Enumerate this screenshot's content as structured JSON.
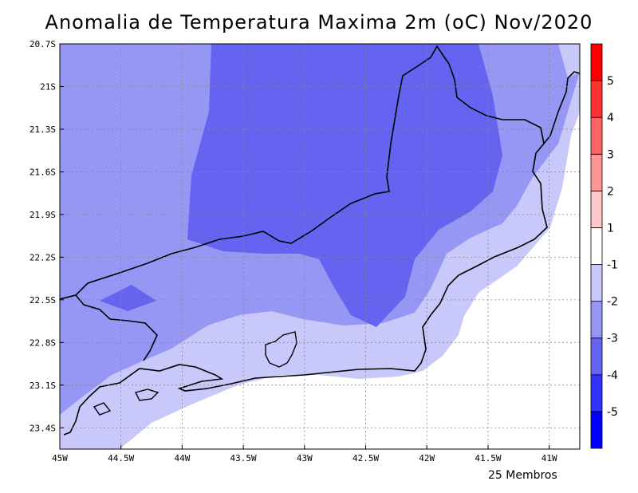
{
  "title": "Anomalia de Temperatura Maxima 2m (oC) Nov/2020",
  "footer": "25 Membros",
  "map": {
    "lon_range": [
      -45,
      -40.75
    ],
    "lat_range": [
      -23.55,
      -20.7
    ],
    "lon_ticks": [
      {
        "value": -45,
        "label": "45W"
      },
      {
        "value": -44.5,
        "label": "44.5W"
      },
      {
        "value": -44,
        "label": "44W"
      },
      {
        "value": -43.5,
        "label": "43.5W"
      },
      {
        "value": -43,
        "label": "43W"
      },
      {
        "value": -42.5,
        "label": "42.5W"
      },
      {
        "value": -42,
        "label": "42W"
      },
      {
        "value": -41.5,
        "label": "41.5W"
      },
      {
        "value": -41,
        "label": "41W"
      }
    ],
    "lat_ticks": [
      {
        "value": -20.7,
        "label": "20.7S"
      },
      {
        "value": -21,
        "label": "21S"
      },
      {
        "value": -21.3,
        "label": "21.3S"
      },
      {
        "value": -21.6,
        "label": "21.6S"
      },
      {
        "value": -21.9,
        "label": "21.9S"
      },
      {
        "value": -22.2,
        "label": "22.2S"
      },
      {
        "value": -22.5,
        "label": "22.5S"
      },
      {
        "value": -22.8,
        "label": "22.8S"
      },
      {
        "value": -23.1,
        "label": "23.1S"
      },
      {
        "value": -23.4,
        "label": "23.4S"
      }
    ]
  },
  "colorbar": {
    "colors": [
      "#0000ff",
      "#3232ff",
      "#6464f0",
      "#9696f5",
      "#c8c8fa",
      "#ffffff",
      "#ffc8c8",
      "#ff9696",
      "#ff6464",
      "#ff3232",
      "#ff0000"
    ],
    "labels": [
      "-5",
      "-4",
      "-3",
      "-2",
      "-1",
      "1",
      "2",
      "3",
      "4",
      "5"
    ]
  },
  "fill_colors": {
    "level_1": "#c8c8fa",
    "level_2": "#9696f5",
    "level_3": "#6464f0",
    "outside": "#ffffff"
  }
}
